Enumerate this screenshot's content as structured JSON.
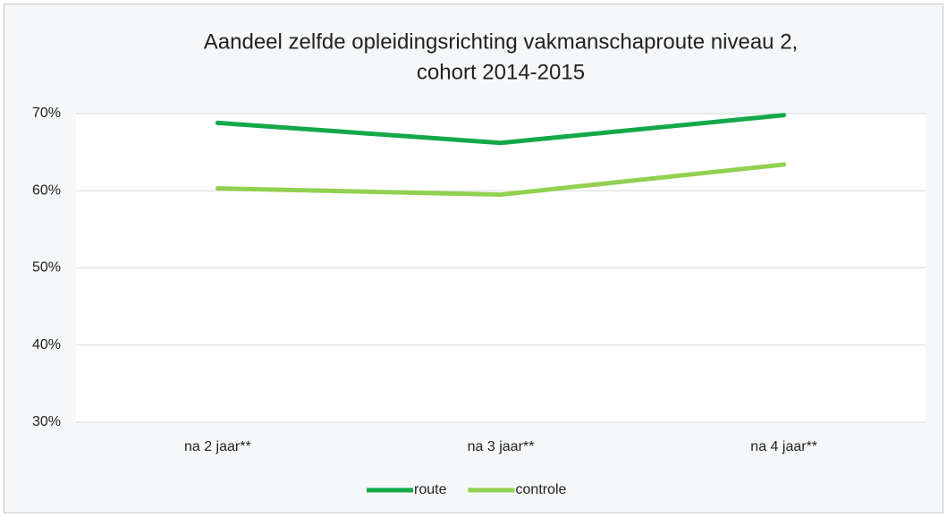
{
  "chart_data": {
    "type": "line",
    "title": [
      "Aandeel zelfde opleidingsrichting vakmanschaproute niveau 2,",
      "cohort 2014-2015"
    ],
    "categories": [
      "na 2 jaar**",
      "na 3 jaar**",
      "na 4 jaar**"
    ],
    "series": [
      {
        "name": "route",
        "color": "#14a84a",
        "values": [
          68.8,
          66.2,
          69.8
        ]
      },
      {
        "name": "controle",
        "color": "#92d050",
        "values": [
          60.3,
          59.5,
          63.4
        ]
      }
    ],
    "ylim": [
      30,
      70
    ],
    "yticks": [
      {
        "value": 30,
        "label": "30%"
      },
      {
        "value": 40,
        "label": "40%"
      },
      {
        "value": 50,
        "label": "50%"
      },
      {
        "value": 60,
        "label": "60%"
      },
      {
        "value": 70,
        "label": "70%"
      }
    ],
    "grid": true,
    "legend": "bottom"
  }
}
